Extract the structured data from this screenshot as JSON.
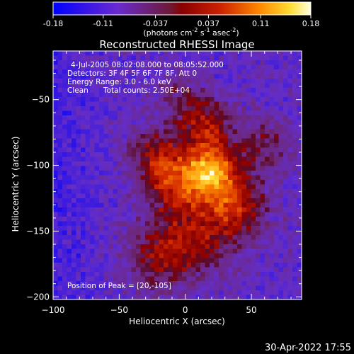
{
  "chart_data": {
    "type": "heatmap",
    "title": "Reconstructed RHESSI Image",
    "xlabel": "Heliocentric X (arcsec)",
    "ylabel": "Heliocentric Y (arcsec)",
    "xlim": [
      -100,
      88
    ],
    "ylim": [
      -202,
      -13
    ],
    "x_ticks": [
      -100,
      -50,
      0,
      50
    ],
    "y_ticks": [
      -50,
      -100,
      -150,
      -200
    ],
    "colorbar": {
      "min": -0.18,
      "max": 0.18,
      "ticks": [
        "-0.18",
        "-0.11",
        "-0.037",
        "0.037",
        "0.11",
        "0.18"
      ],
      "unit_label": "(photons cm",
      "unit_sup1": "-2",
      "unit_mid": " s",
      "unit_sup2": "-1",
      "unit_mid2": " asec",
      "unit_sup3": "-2",
      "unit_end": ")"
    },
    "peak": {
      "x": 20,
      "y": -105,
      "value": 0.18
    },
    "annotations": {
      "date_range": "4-Jul-2005 08:02:08.000 to 08:05:52.000",
      "detectors": "Detectors: 3F 4F 5F 6F 7F 8F, Att 0",
      "energy": "Energy Range: 3.0 - 6.0 keV",
      "method": "Clean",
      "counts": "Total counts: 2.50E+04",
      "peak_position": "Position of Peak = [20,-105]"
    }
  },
  "footer": {
    "timestamp": "30-Apr-2022 17:55"
  }
}
